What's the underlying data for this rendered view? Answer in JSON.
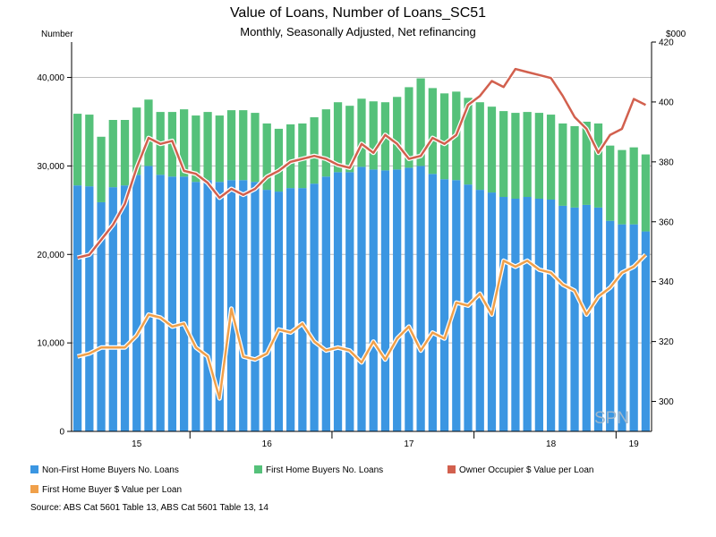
{
  "chart_data": {
    "type": "bar",
    "title": "Value of Loans, Number of Loans_SC51",
    "subtitle": "Monthly, Seasonally Adjusted, Net refinancing",
    "y_left_unit": "Number",
    "y_right_unit": "$000",
    "y_left_ticks": [
      "0",
      "10,000",
      "20,000",
      "30,000",
      "40,000"
    ],
    "y_right_ticks": [
      "300",
      "320",
      "340",
      "360",
      "380",
      "400",
      "420"
    ],
    "ylim_left": [
      0,
      44000
    ],
    "ylim_right": [
      290,
      420
    ],
    "x_tick_labels": [
      {
        "label": "15",
        "index": 5
      },
      {
        "label": "16",
        "index": 16
      },
      {
        "label": "17",
        "index": 28
      },
      {
        "label": "18",
        "index": 40
      },
      {
        "label": "19",
        "index": 47
      }
    ],
    "year_boundaries": [
      10,
      22,
      34,
      46
    ],
    "stacked": true,
    "series": [
      {
        "name": "Non-First Home Buyers No. Loans",
        "color": "#3b96e2",
        "kind": "bar",
        "axis": "left",
        "values": [
          27800,
          27700,
          25900,
          27600,
          27800,
          29000,
          30000,
          29000,
          28800,
          28800,
          28200,
          28400,
          28200,
          28400,
          28400,
          28200,
          27300,
          27100,
          27500,
          27500,
          28000,
          28800,
          29300,
          29300,
          29900,
          29600,
          29500,
          29600,
          29800,
          30000,
          29100,
          28500,
          28400,
          27900,
          27300,
          27000,
          26500,
          26300,
          26500,
          26300,
          26200,
          25500,
          25300,
          25600,
          25300,
          23800,
          23400,
          23400,
          22600
        ]
      },
      {
        "name": "First Home Buyers No. Loans",
        "color": "#55c17a",
        "kind": "bar",
        "axis": "left",
        "values": [
          8100,
          8100,
          7400,
          7600,
          7400,
          7600,
          7500,
          7100,
          7300,
          7600,
          7500,
          7700,
          7500,
          7900,
          7900,
          7800,
          7500,
          7100,
          7200,
          7300,
          7500,
          7600,
          7900,
          7500,
          7700,
          7700,
          7700,
          8200,
          9100,
          9900,
          9700,
          9700,
          10000,
          9800,
          9900,
          9700,
          9700,
          9700,
          9600,
          9700,
          9600,
          9300,
          9200,
          9400,
          9500,
          8500,
          8400,
          8700,
          8700
        ]
      },
      {
        "name": "Owner Occupier $ Value per Loan",
        "color": "#d2604e",
        "kind": "line",
        "axis": "right",
        "values": [
          348,
          349,
          354,
          359,
          366,
          378,
          388,
          386,
          387,
          377,
          376,
          373,
          368,
          371,
          369,
          371,
          375,
          377,
          380,
          381,
          382,
          381,
          379,
          378,
          386,
          383,
          389,
          386,
          381,
          382,
          388,
          386,
          389,
          399,
          402,
          407,
          405,
          411,
          410,
          409,
          408,
          402,
          395,
          391,
          383,
          389,
          391,
          401,
          399
        ]
      },
      {
        "name": "First Home Buyer $ Value per Loan",
        "color": "#f0a04a",
        "kind": "line",
        "axis": "right",
        "values": [
          315,
          316,
          318,
          318,
          318,
          322,
          329,
          328,
          325,
          326,
          318,
          315,
          301,
          331,
          315,
          314,
          316,
          324,
          323,
          326,
          320,
          317,
          318,
          317,
          313,
          320,
          314,
          321,
          325,
          317,
          323,
          321,
          333,
          332,
          336,
          329,
          347,
          345,
          347,
          344,
          343,
          339,
          337,
          329,
          335,
          338,
          343,
          345,
          349
        ]
      }
    ]
  },
  "legend": [
    {
      "label": "Non-First Home Buyers No. Loans",
      "color": "#3b96e2"
    },
    {
      "label": "First Home Buyers No. Loans",
      "color": "#55c17a"
    },
    {
      "label": "Owner Occupier $ Value per Loan",
      "color": "#d2604e"
    },
    {
      "label": "First Home Buyer $ Value per Loan",
      "color": "#f0a04a"
    }
  ],
  "source": "Source: ABS Cat 5601 Table 13, ABS Cat 5601 Table 13, 14",
  "watermark": "SPN"
}
